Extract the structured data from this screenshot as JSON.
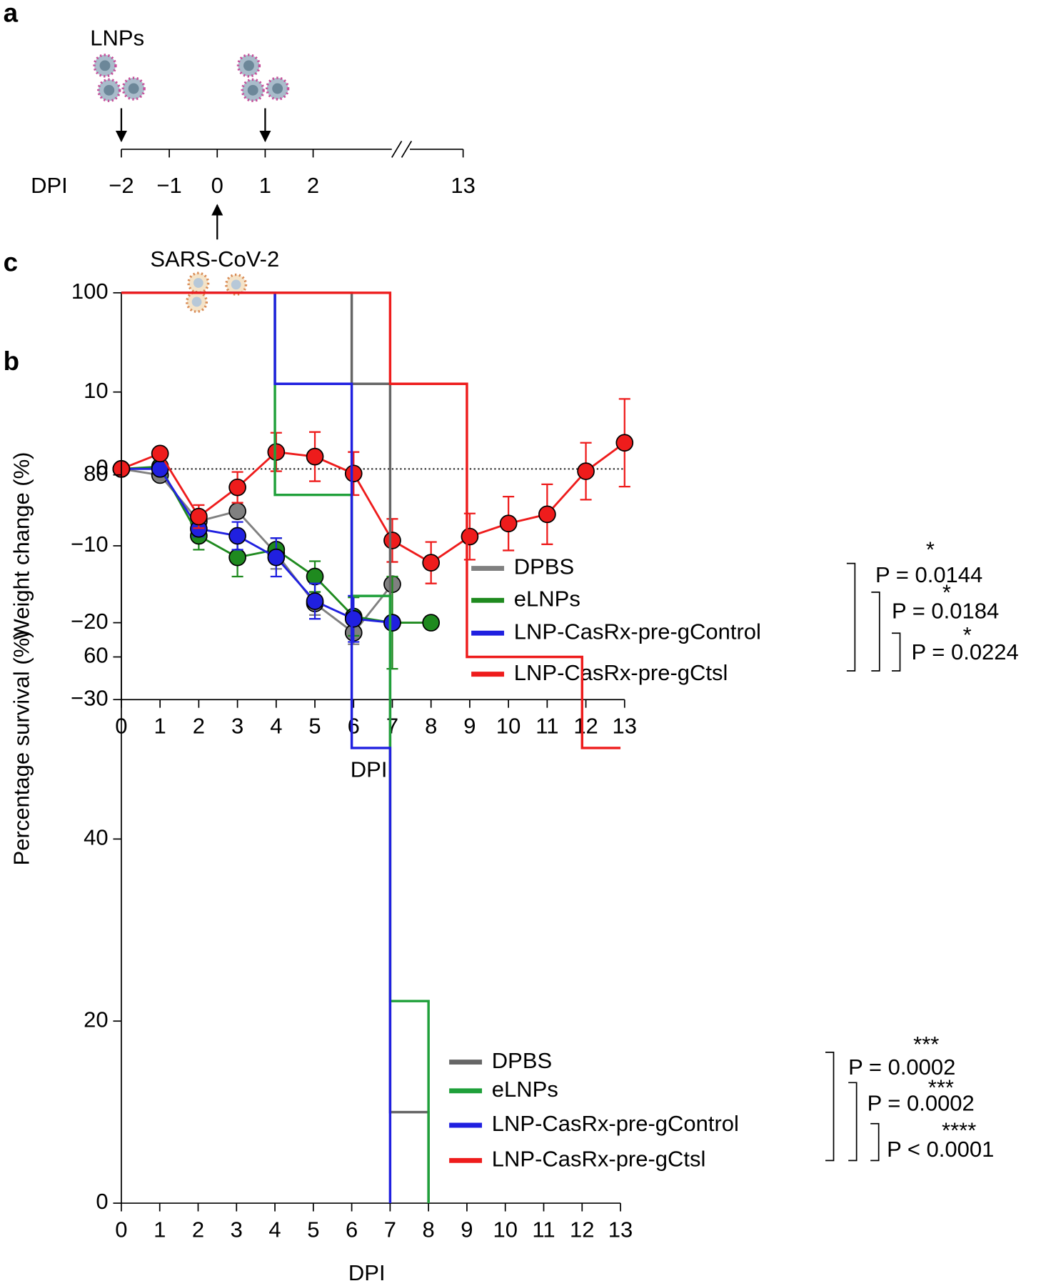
{
  "chart_data": [
    {
      "type": "timeline",
      "panel_label": "a",
      "axis_label": "DPI",
      "top_label": "LNPs",
      "bottom_label": "SARS-CoV-2",
      "ticks": [
        {
          "value": -2,
          "label": "−2"
        },
        {
          "value": -1,
          "label": "−1"
        },
        0,
        1,
        2,
        13
      ],
      "lnp_doses": [
        -2,
        1
      ],
      "infection": 0
    },
    {
      "type": "line",
      "panel_label": "b",
      "xlabel": "DPI",
      "ylabel": "Weight change (%)",
      "xlim": [
        0,
        13
      ],
      "ylim": [
        -30,
        10
      ],
      "xticks": [
        0,
        1,
        2,
        3,
        4,
        5,
        6,
        7,
        8,
        9,
        10,
        11,
        12,
        13
      ],
      "yticks": [
        10,
        0,
        {
          "value": -10,
          "label": "−10"
        },
        {
          "value": -20,
          "label": "−20"
        },
        {
          "value": -30,
          "label": "−30"
        }
      ],
      "reference_line": 0,
      "series": [
        {
          "name": "DPBS",
          "color": "#808080",
          "x": [
            0,
            1,
            2,
            3,
            4,
            5,
            6,
            7
          ],
          "values": [
            0,
            -0.8,
            -6.8,
            -5.5,
            -11,
            -17.5,
            -21.3,
            -15
          ],
          "errors": [
            0,
            0,
            0.8,
            0.8,
            2,
            1.5,
            1.5,
            0
          ]
        },
        {
          "name": "eLNPs",
          "color": "#1f8a1f",
          "x": [
            0,
            1,
            2,
            3,
            4,
            5,
            6,
            7,
            8
          ],
          "values": [
            0,
            0.3,
            -8.7,
            -11.5,
            -10.5,
            -14,
            -19.2,
            -20,
            -20
          ],
          "errors": [
            0,
            0,
            1.8,
            2.5,
            1.5,
            2,
            2.5,
            6,
            0
          ]
        },
        {
          "name": "LNP-CasRx-pre-gControl",
          "color": "#2020e0",
          "x": [
            0,
            1,
            2,
            3,
            4,
            5,
            6,
            7
          ],
          "values": [
            0,
            0,
            -7.8,
            -8.7,
            -11.5,
            -17.2,
            -19.5,
            -20
          ],
          "errors": [
            0,
            0,
            1,
            1.8,
            2.5,
            2.3,
            3,
            0
          ]
        },
        {
          "name": "LNP-CasRx-pre-gCtsl",
          "color": "#ee1c1c",
          "x": [
            0,
            1,
            2,
            3,
            4,
            5,
            6,
            7,
            8,
            9,
            10,
            11,
            12,
            13
          ],
          "values": [
            0,
            2,
            -6.2,
            -2.4,
            2.2,
            1.6,
            -0.6,
            -9.3,
            -12.2,
            -8.8,
            -7.1,
            -5.9,
            -0.3,
            3.4
          ],
          "errors": [
            0,
            0,
            1.5,
            2,
            2.5,
            3.2,
            2.8,
            2.8,
            2.7,
            3,
            3.5,
            3.9,
            3.7,
            5.7
          ]
        }
      ],
      "significance": [
        {
          "stars": "*",
          "label": "P = 0.0144"
        },
        {
          "stars": "*",
          "label": "P = 0.0184"
        },
        {
          "stars": "*",
          "label": "P = 0.0224"
        }
      ]
    },
    {
      "type": "step",
      "panel_label": "c",
      "xlabel": "DPI",
      "ylabel": "Percentage survival (%)",
      "xlim": [
        0,
        13
      ],
      "ylim": [
        0,
        100
      ],
      "xticks": [
        0,
        1,
        2,
        3,
        4,
        5,
        6,
        7,
        8,
        9,
        10,
        11,
        12,
        13
      ],
      "yticks": [
        0,
        20,
        40,
        60,
        80,
        100
      ],
      "series": [
        {
          "name": "DPBS",
          "color": "#666666",
          "x": [
            0,
            6,
            7,
            8
          ],
          "values": [
            100,
            90,
            10,
            0
          ]
        },
        {
          "name": "eLNPs",
          "color": "#1fa03a",
          "x": [
            0,
            4,
            6,
            7,
            8
          ],
          "values": [
            100,
            77.8,
            66.7,
            22.2,
            0
          ]
        },
        {
          "name": "LNP-CasRx-pre-gControl",
          "color": "#2020e0",
          "x": [
            0,
            4,
            6,
            7
          ],
          "values": [
            100,
            90,
            50,
            0
          ]
        },
        {
          "name": "LNP-CasRx-pre-gCtsl",
          "color": "#ee1c1c",
          "x": [
            0,
            7,
            9,
            12,
            13
          ],
          "values": [
            100,
            90,
            60,
            50,
            50
          ]
        }
      ],
      "significance": [
        {
          "stars": "***",
          "label": "P = 0.0002"
        },
        {
          "stars": "***",
          "label": "P = 0.0002"
        },
        {
          "stars": "****",
          "label": "P < 0.0001"
        }
      ]
    }
  ]
}
